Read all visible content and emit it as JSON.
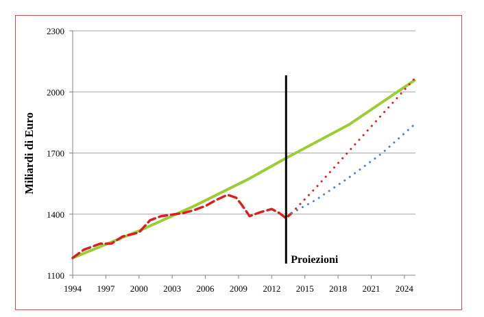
{
  "chart_data": {
    "type": "line",
    "title": "",
    "xlabel": "",
    "ylabel": "Miliardi di Euro",
    "xlim": [
      1994,
      2025
    ],
    "ylim": [
      1100,
      2300
    ],
    "x_ticks": [
      "1994",
      "1997",
      "2000",
      "2003",
      "2006",
      "2009",
      "2012",
      "2015",
      "2018",
      "2021",
      "2024"
    ],
    "y_ticks": [
      "1100",
      "1400",
      "1700",
      "2000",
      "2300"
    ],
    "grid": "horizontal",
    "annotation": {
      "text": "Proiezioni",
      "x": 2013.3
    },
    "series": [
      {
        "color": "#9acd32",
        "style": "solid",
        "points": [
          [
            1994,
            1185
          ],
          [
            2000,
            1318
          ],
          [
            2005,
            1440
          ],
          [
            2010,
            1575
          ],
          [
            2013.3,
            1675
          ],
          [
            2019,
            1840
          ],
          [
            2025,
            2060
          ]
        ]
      },
      {
        "color": "#d92020",
        "style": "dashed",
        "points": [
          [
            1994,
            1185
          ],
          [
            1995,
            1225
          ],
          [
            1996.5,
            1255
          ],
          [
            1997.5,
            1255
          ],
          [
            1998.5,
            1290
          ],
          [
            2000,
            1310
          ],
          [
            2001,
            1370
          ],
          [
            2002,
            1390
          ],
          [
            2003,
            1398
          ],
          [
            2004,
            1405
          ],
          [
            2005,
            1420
          ],
          [
            2006,
            1440
          ],
          [
            2007,
            1470
          ],
          [
            2008,
            1495
          ],
          [
            2008.8,
            1480
          ],
          [
            2009.3,
            1445
          ],
          [
            2010,
            1390
          ],
          [
            2011,
            1410
          ],
          [
            2012,
            1425
          ],
          [
            2012.7,
            1405
          ],
          [
            2013.3,
            1380
          ],
          [
            2013.8,
            1405
          ]
        ]
      },
      {
        "color": "#e02020",
        "style": "dotted",
        "points": [
          [
            2013.8,
            1405
          ],
          [
            2016,
            1530
          ],
          [
            2019,
            1710
          ],
          [
            2022,
            1890
          ],
          [
            2025,
            2070
          ]
        ]
      },
      {
        "color": "#4f81bd",
        "style": "dotted",
        "points": [
          [
            2013.8,
            1405
          ],
          [
            2016,
            1470
          ],
          [
            2019,
            1580
          ],
          [
            2022,
            1700
          ],
          [
            2024.8,
            1835
          ]
        ]
      }
    ]
  }
}
